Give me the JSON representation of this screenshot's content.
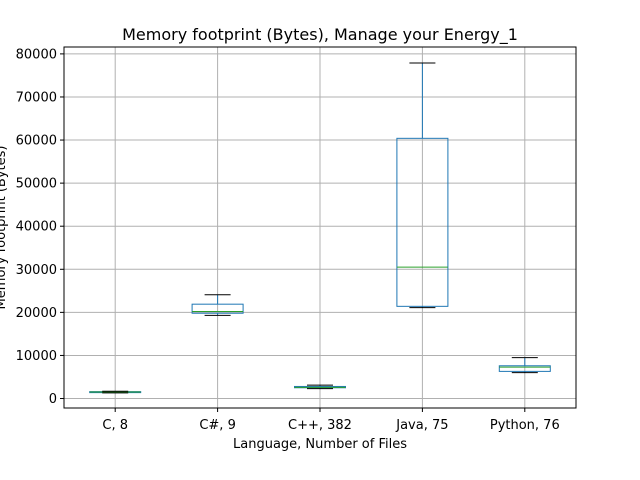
{
  "chart_data": {
    "type": "boxplot",
    "title": "Memory footprint (Bytes), Manage your Energy_1",
    "xlabel": "Language, Number of Files",
    "ylabel": "Memory footprint (Bytes)",
    "ylim": [
      -2200,
      81600
    ],
    "yticks": [
      0,
      10000,
      20000,
      30000,
      40000,
      50000,
      60000,
      70000,
      80000
    ],
    "grid": true,
    "colors": {
      "box": "#1f77b4",
      "median": "#2ca02c",
      "whisker": "#1f77b4",
      "cap": "#000000",
      "grid": "#b0b0b0"
    },
    "categories": [
      "C, 8",
      "C#, 9",
      "C++, 382",
      "Java, 75",
      "Python, 76"
    ],
    "boxes": [
      {
        "label": "C, 8",
        "whislo": 1300,
        "q1": 1400,
        "med": 1500,
        "q3": 1600,
        "whishi": 1700
      },
      {
        "label": "C#, 9",
        "whislo": 19300,
        "q1": 19800,
        "med": 20200,
        "q3": 21900,
        "whishi": 24100
      },
      {
        "label": "C++, 382",
        "whislo": 2300,
        "q1": 2500,
        "med": 2600,
        "q3": 2800,
        "whishi": 3100
      },
      {
        "label": "Java, 75",
        "whislo": 21100,
        "q1": 21400,
        "med": 30500,
        "q3": 60400,
        "whishi": 77900
      },
      {
        "label": "Python, 76",
        "whislo": 6000,
        "q1": 6300,
        "med": 7300,
        "q3": 7600,
        "whishi": 9500
      }
    ]
  }
}
